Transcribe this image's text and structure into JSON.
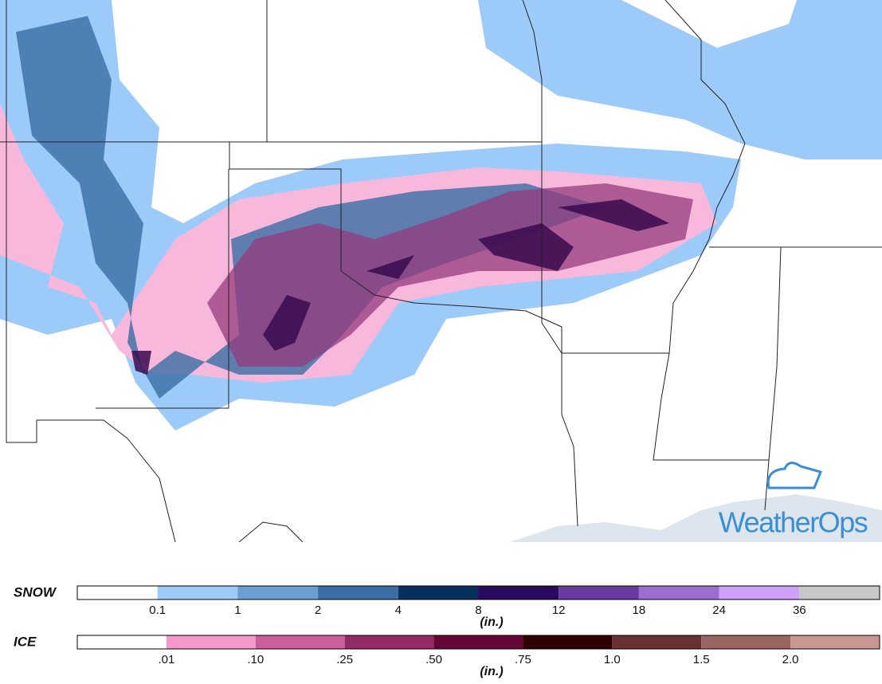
{
  "legends": [
    {
      "title": "SNOW",
      "unit": "(in.)",
      "labels": [
        "0.1",
        "1",
        "2",
        "4",
        "8",
        "12",
        "18",
        "24",
        "36"
      ],
      "colors": [
        "#ffffff",
        "#9ccbfa",
        "#6a9fd4",
        "#3a6ea5",
        "#07305e",
        "#2a0a5e",
        "#6a3aa2",
        "#9a6fd0",
        "#cfa0f7",
        "#c8c8c8"
      ]
    },
    {
      "title": "ICE",
      "unit": "(in.)",
      "labels": [
        ".01",
        ".10",
        ".25",
        ".50",
        ".75",
        "1.0",
        "1.5",
        "2.0"
      ],
      "colors": [
        "#ffffff",
        "#f597c9",
        "#c95e98",
        "#952b64",
        "#660736",
        "#2f0003",
        "#693131",
        "#9a6664",
        "#c99793"
      ]
    }
  ],
  "logo": "WeatherOps"
}
